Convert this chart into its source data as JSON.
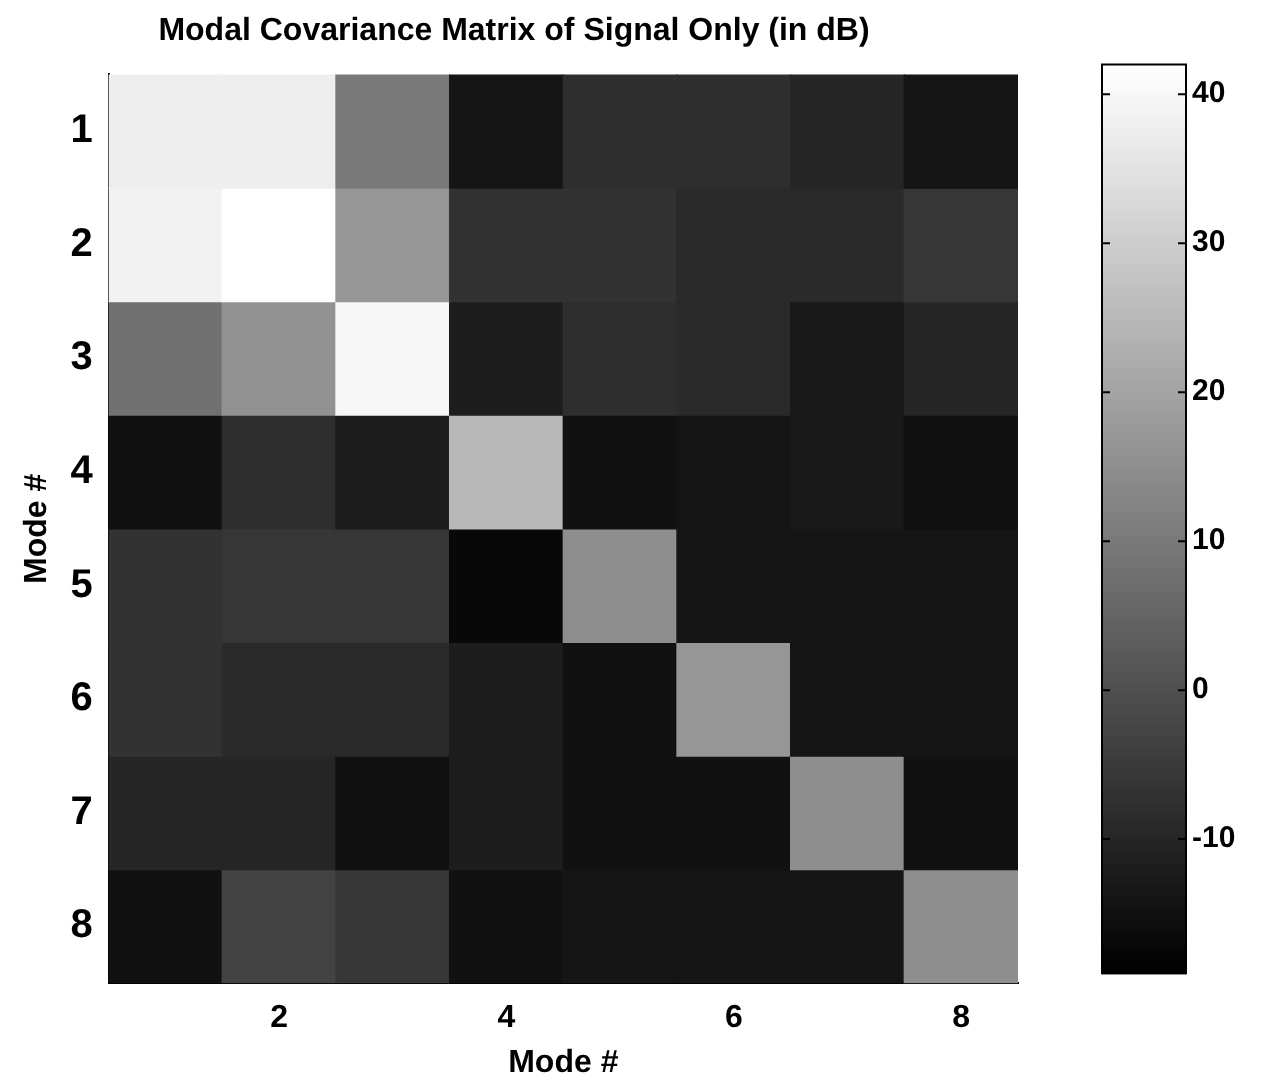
{
  "chart_data": {
    "type": "heatmap",
    "title": "Modal Covariance Matrix of Signal Only (in dB)",
    "xlabel": "Mode #",
    "ylabel": "Mode #",
    "categories": [
      null,
      "2",
      null,
      "4",
      null,
      "6",
      null,
      "8"
    ],
    "y_categories": [
      "1",
      "2",
      "3",
      "4",
      "5",
      "6",
      "7",
      "8"
    ],
    "cells": [
      [
        38,
        38,
        10,
        -14,
        -8,
        -8,
        -10,
        -14
      ],
      [
        39,
        42,
        17,
        -7,
        -7,
        -9,
        -9,
        -6
      ],
      [
        8,
        16,
        40,
        -12,
        -8,
        -9,
        -13,
        -10
      ],
      [
        -15,
        -8,
        -12,
        25,
        -15,
        -14,
        -13,
        -15
      ],
      [
        -7,
        -6,
        -6,
        -17,
        15,
        -14,
        -14,
        -14
      ],
      [
        -7,
        -9,
        -9,
        -12,
        -15,
        17,
        -14,
        -14
      ],
      [
        -10,
        -10,
        -15,
        -12,
        -15,
        -15,
        15,
        -15
      ],
      [
        -15,
        -3,
        -6,
        -15,
        -14,
        -14,
        -14,
        15
      ]
    ],
    "clim": [
      -19,
      42
    ],
    "cticks": [
      -10,
      0,
      10,
      20,
      30,
      40
    ]
  }
}
